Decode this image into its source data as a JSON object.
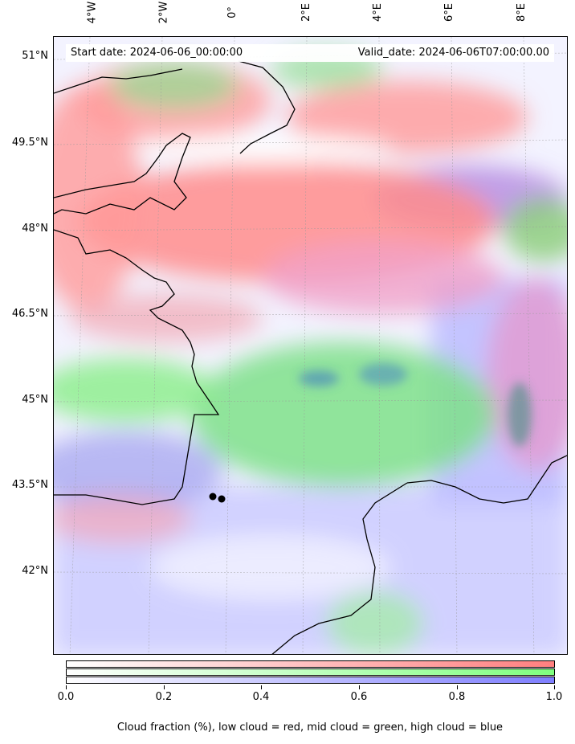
{
  "header": {
    "start_date": "Start date: 2024-06-06_00:00:00",
    "valid_date": "Valid_date: 2024-06-06T07:00:00.00"
  },
  "longitude_labels": [
    "4°W",
    "2°W",
    "0°",
    "2°E",
    "4°E",
    "6°E",
    "8°E"
  ],
  "latitude_labels": [
    "51°N",
    "49.5°N",
    "48°N",
    "46.5°N",
    "45°N",
    "43.5°N",
    "42°N"
  ],
  "colorbar": {
    "ticks": [
      "0.0",
      "0.2",
      "0.4",
      "0.6",
      "0.8",
      "1.0"
    ],
    "caption": "Cloud fraction (%), low cloud = red, mid cloud = green, high cloud = blue",
    "low_color": "#ff7f7f",
    "mid_color": "#7fff7f",
    "high_color": "#7f7fff"
  }
}
